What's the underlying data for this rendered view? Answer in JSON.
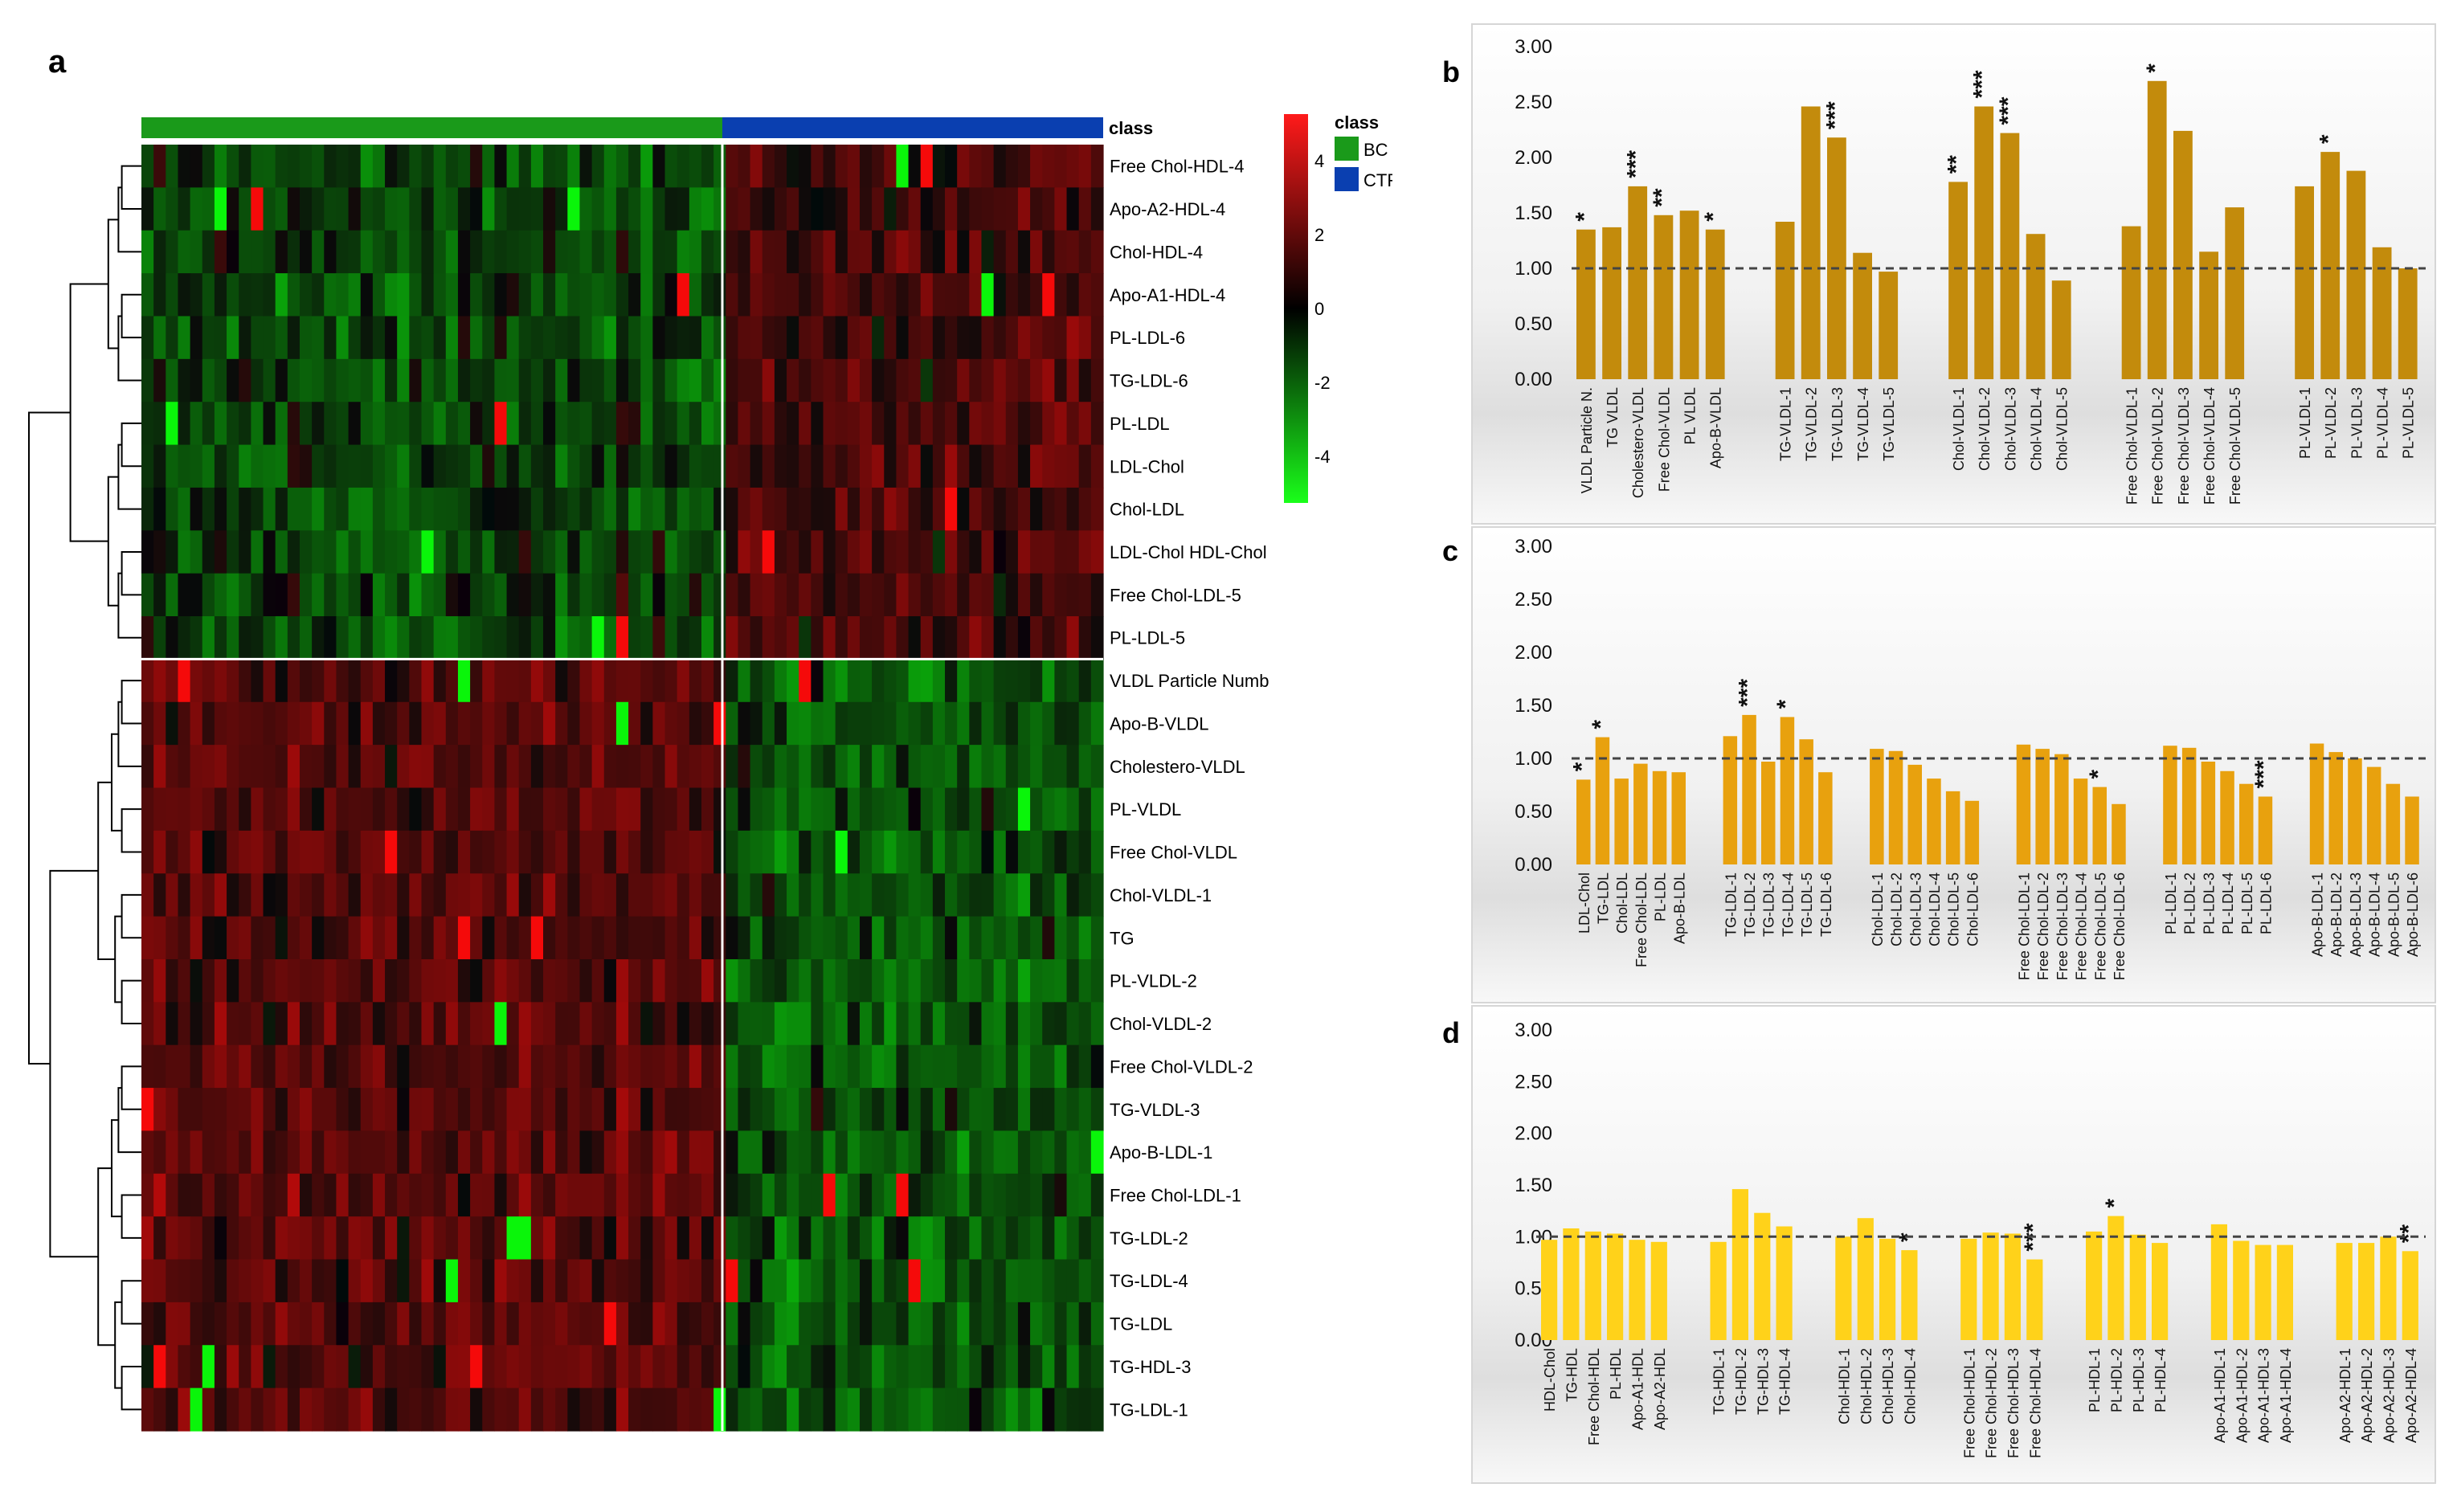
{
  "panel_letters": {
    "a": "a",
    "b": "b",
    "c": "c",
    "d": "d"
  },
  "heatmap": {
    "class_label": "class",
    "legend_title": "class",
    "legend_items": [
      {
        "label": "BC",
        "color": "#1a9a1a"
      },
      {
        "label": "CTR",
        "color": "#0a3fb0"
      }
    ],
    "colorbar_ticks": [
      "4",
      "2",
      "0",
      "-2",
      "-4"
    ],
    "colors": {
      "high": "#ff1a1a",
      "mid": "#000000",
      "low": "#1aff1a",
      "bc": "#1a9a1a",
      "ctr": "#0a3fb0"
    },
    "n_bc_columns": 48,
    "n_ctr_columns": 31,
    "cluster_break_after_row": 12,
    "rows": [
      "Free Chol-HDL-4",
      "Apo-A2-HDL-4",
      "Chol-HDL-4",
      "Apo-A1-HDL-4",
      "PL-LDL-6",
      "TG-LDL-6",
      "PL-LDL",
      "LDL-Chol",
      "Chol-LDL",
      "LDL-Chol HDL-Chol",
      "Free Chol-LDL-5",
      "PL-LDL-5",
      "VLDL Particle Numb",
      "Apo-B-VLDL",
      "Cholestero-VLDL",
      "PL-VLDL",
      "Free Chol-VLDL",
      "Chol-VLDL-1",
      "TG",
      "PL-VLDL-2",
      "Chol-VLDL-2",
      "Free Chol-VLDL-2",
      "TG-VLDL-3",
      "Apo-B-LDL-1",
      "Free Chol-LDL-1",
      "TG-LDL-2",
      "TG-LDL-4",
      "TG-LDL",
      "TG-HDL-3",
      "TG-LDL-1"
    ],
    "row_group_tendency": [
      -0.35,
      0.45
    ]
  },
  "chart_data": [
    {
      "panel": "b",
      "type": "bar",
      "ylim": [
        0,
        3
      ],
      "yticks": [
        "0.00",
        "0.50",
        "1.00",
        "1.50",
        "2.00",
        "2.50",
        "3.00"
      ],
      "reference_line": 1.0,
      "bar_color": "#c38b0c",
      "groups": [
        {
          "categories": [
            "VLDL Particle N.",
            "TG VLDL",
            "Cholestero-VLDL",
            "Free Chol-VLDL",
            "PL VLDL",
            "Apo-B-VLDL"
          ],
          "values": [
            1.35,
            1.37,
            1.74,
            1.48,
            1.52,
            1.35
          ],
          "stars": [
            "*",
            "",
            "***",
            "**",
            "",
            "*"
          ]
        },
        {
          "categories": [
            "TG-VLDL-1",
            "TG-VLDL-2",
            "TG-VLDL-3",
            "TG-VLDL-4",
            "TG-VLDL-5"
          ],
          "values": [
            1.42,
            2.46,
            2.18,
            1.14,
            0.97
          ],
          "stars": [
            "",
            "",
            "***",
            "",
            ""
          ]
        },
        {
          "categories": [
            "Chol-VLDL-1",
            "Chol-VLDL-2",
            "Chol-VLDL-3",
            "Chol-VLDL-4",
            "Chol-VLDL-5"
          ],
          "values": [
            1.78,
            2.46,
            2.22,
            1.31,
            0.89
          ],
          "stars": [
            "**",
            "***",
            "***",
            "",
            ""
          ]
        },
        {
          "categories": [
            "Free Chol-VLDL-1",
            "Free Chol-VLDL-2",
            "Free Chol-VLDL-3",
            "Free Chol-VLDL-4",
            "Free Chol-VLDL-5"
          ],
          "values": [
            1.38,
            2.69,
            2.24,
            1.15,
            1.55
          ],
          "stars": [
            "",
            "*",
            "",
            "",
            ""
          ]
        },
        {
          "categories": [
            "PL-VLDL-1",
            "PL-VLDL-2",
            "PL-VLDL-3",
            "PL-VLDL-4",
            "PL-VLDL-5"
          ],
          "values": [
            1.74,
            2.05,
            1.88,
            1.19,
            1.0
          ],
          "stars": [
            "",
            "*",
            "",
            "",
            ""
          ]
        }
      ]
    },
    {
      "panel": "c",
      "type": "bar",
      "ylim": [
        0,
        3
      ],
      "yticks": [
        "0.00",
        "0.50",
        "1.00",
        "1.50",
        "2.00",
        "2.50",
        "3.00"
      ],
      "reference_line": 1.0,
      "bar_color": "#e8a10e",
      "groups": [
        {
          "categories": [
            "LDL-Chol",
            "TG-LDL",
            "Chol-LDL",
            "Free Chol-LDL",
            "PL-LDL",
            "Apo-B-LDL"
          ],
          "values": [
            0.8,
            1.2,
            0.81,
            0.95,
            0.88,
            0.87
          ],
          "stars": [
            "*",
            "*",
            "",
            "",
            "",
            ""
          ]
        },
        {
          "categories": [
            "TG-LDL-1",
            "TG-LDL-2",
            "TG-LDL-3",
            "TG-LDL-4",
            "TG-LDL-5",
            "TG-LDL-6"
          ],
          "values": [
            1.21,
            1.41,
            0.97,
            1.39,
            1.18,
            0.87
          ],
          "stars": [
            "",
            "***",
            "",
            "*",
            "",
            ""
          ]
        },
        {
          "categories": [
            "Chol-LDL-1",
            "Chol-LDL-2",
            "Chol-LDL-3",
            "Chol-LDL-4",
            "Chol-LDL-5",
            "Chol-LDL-6"
          ],
          "values": [
            1.09,
            1.07,
            0.94,
            0.81,
            0.69,
            0.6
          ],
          "stars": [
            "",
            "",
            "",
            "",
            "",
            ""
          ]
        },
        {
          "categories": [
            "Free Chol-LDL-1",
            "Free Chol-LDL-2",
            "Free Chol-LDL-3",
            "Free Chol-LDL-4",
            "Free Chol-LDL-5",
            "Free Chol-LDL-6"
          ],
          "values": [
            1.13,
            1.09,
            1.04,
            0.81,
            0.73,
            0.57
          ],
          "stars": [
            "",
            "",
            "",
            "",
            "*",
            ""
          ]
        },
        {
          "categories": [
            "PL-LDL-1",
            "PL-LDL-2",
            "PL-LDL-3",
            "PL-LDL-4",
            "PL-LDL-5",
            "PL-LDL-6"
          ],
          "values": [
            1.12,
            1.1,
            0.97,
            0.88,
            0.76,
            0.64
          ],
          "stars": [
            "",
            "",
            "",
            "",
            "",
            "***"
          ]
        },
        {
          "categories": [
            "Apo-B-LDL-1",
            "Apo-B-LDL-2",
            "Apo-B-LDL-3",
            "Apo-B-LDL-4",
            "Apo-B-LDL-5",
            "Apo-B-LDL-6"
          ],
          "values": [
            1.14,
            1.06,
            1.0,
            0.92,
            0.76,
            0.64
          ],
          "stars": [
            "",
            "",
            "",
            "",
            "",
            ""
          ]
        }
      ]
    },
    {
      "panel": "d",
      "type": "bar",
      "ylim": [
        0,
        3
      ],
      "yticks": [
        "0.00",
        "0.50",
        "1.00",
        "1.50",
        "2.00",
        "2.50",
        "3.00"
      ],
      "reference_line": 1.0,
      "bar_color": "#ffd21a",
      "groups": [
        {
          "categories": [
            "HDL-Chol",
            "TG-HDL",
            "Free Chol-HDL",
            "PL-HDL",
            "Apo-A1-HDL",
            "Apo-A2-HDL"
          ],
          "values": [
            0.97,
            1.08,
            1.05,
            1.03,
            0.97,
            0.95
          ],
          "stars": [
            "",
            "",
            "",
            "",
            "",
            ""
          ]
        },
        {
          "categories": [
            "TG-HDL-1",
            "TG-HDL-2",
            "TG-HDL-3",
            "TG-HDL-4"
          ],
          "values": [
            0.95,
            1.46,
            1.23,
            1.1
          ],
          "stars": [
            "",
            "",
            "",
            ""
          ]
        },
        {
          "categories": [
            "Chol-HDL-1",
            "Chol-HDL-2",
            "Chol-HDL-3",
            "Chol-HDL-4"
          ],
          "values": [
            1.0,
            1.18,
            0.98,
            0.87
          ],
          "stars": [
            "",
            "",
            "",
            "*"
          ]
        },
        {
          "categories": [
            "Free Chol-HDL-1",
            "Free Chol-HDL-2",
            "Free Chol-HDL-3",
            "Free Chol-HDL-4"
          ],
          "values": [
            0.98,
            1.04,
            1.03,
            0.78
          ],
          "stars": [
            "",
            "",
            "",
            "***"
          ]
        },
        {
          "categories": [
            "PL-HDL-1",
            "PL-HDL-2",
            "PL-HDL-3",
            "PL-HDL-4"
          ],
          "values": [
            1.05,
            1.2,
            1.02,
            0.94
          ],
          "stars": [
            "",
            "*",
            "",
            ""
          ]
        },
        {
          "categories": [
            "Apo-A1-HDL-1",
            "Apo-A1-HDL-2",
            "Apo-A1-HDL-3",
            "Apo-A1-HDL-4"
          ],
          "values": [
            1.12,
            0.96,
            0.92,
            0.92
          ],
          "stars": [
            "",
            "",
            "",
            ""
          ]
        },
        {
          "categories": [
            "Apo-A2-HDL-1",
            "Apo-A2-HDL-2",
            "Apo-A2-HDL-3",
            "Apo-A2-HDL-4"
          ],
          "values": [
            0.94,
            0.94,
            1.0,
            0.86
          ],
          "stars": [
            "",
            "",
            "",
            "**"
          ]
        }
      ]
    }
  ]
}
